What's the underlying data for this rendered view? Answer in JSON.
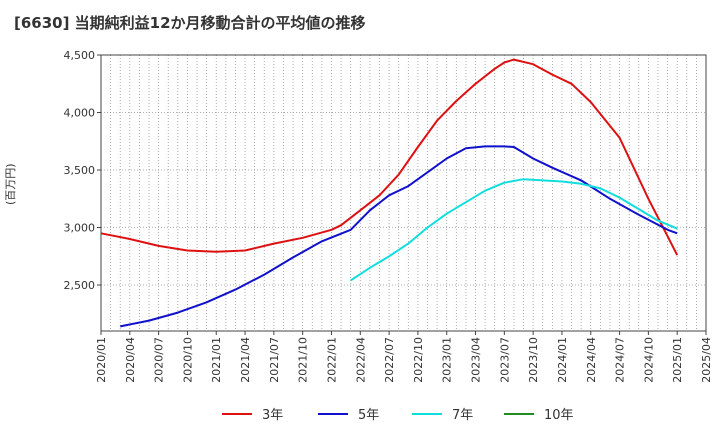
{
  "title": "[6630]  当期純利益12か月移動合計の平均値の推移",
  "chart_data": {
    "type": "line",
    "title": "[6630]  当期純利益12か月移動合計の平均値の推移",
    "xlabel": "",
    "ylabel": "(百万円)",
    "ylim": [
      2100,
      4500
    ],
    "yticks": [
      2500,
      3000,
      3500,
      4000,
      4500
    ],
    "ytick_labels": [
      "2,500",
      "3,000",
      "3,500",
      "4,000",
      "4,500"
    ],
    "x_range": [
      "2020-01",
      "2025-04"
    ],
    "xticks": [
      "2020/01",
      "2020/04",
      "2020/07",
      "2020/10",
      "2021/01",
      "2021/04",
      "2021/07",
      "2021/10",
      "2022/01",
      "2022/04",
      "2022/07",
      "2022/10",
      "2023/01",
      "2023/04",
      "2023/07",
      "2023/10",
      "2024/01",
      "2024/04",
      "2024/07",
      "2024/10",
      "2025/01",
      "2025/04"
    ],
    "grid": true,
    "legend_position": "bottom",
    "series": [
      {
        "name": "3年",
        "color": "#dd1111",
        "x": [
          "2020-01",
          "2020-04",
          "2020-07",
          "2020-10",
          "2021-01",
          "2021-04",
          "2021-07",
          "2021-10",
          "2022-01",
          "2022-02",
          "2022-04",
          "2022-06",
          "2022-08",
          "2022-10",
          "2022-12",
          "2023-02",
          "2023-04",
          "2023-06",
          "2023-07",
          "2023-08",
          "2023-10",
          "2023-12",
          "2024-02",
          "2024-04",
          "2024-07",
          "2024-10",
          "2025-01"
        ],
        "values": [
          2950,
          2900,
          2840,
          2800,
          2790,
          2800,
          2860,
          2910,
          2980,
          3020,
          3150,
          3280,
          3460,
          3700,
          3930,
          4100,
          4250,
          4380,
          4435,
          4460,
          4420,
          4330,
          4250,
          4090,
          3780,
          3250,
          2760
        ]
      },
      {
        "name": "5年",
        "color": "#1111cc",
        "x": [
          "2020-03",
          "2020-06",
          "2020-09",
          "2020-12",
          "2021-03",
          "2021-06",
          "2021-09",
          "2021-12",
          "2022-03",
          "2022-05",
          "2022-07",
          "2022-09",
          "2022-11",
          "2023-01",
          "2023-03",
          "2023-05",
          "2023-07",
          "2023-08",
          "2023-10",
          "2023-12",
          "2024-03",
          "2024-06",
          "2024-09",
          "2024-12",
          "2025-01"
        ],
        "values": [
          2140,
          2190,
          2260,
          2350,
          2460,
          2590,
          2740,
          2880,
          2980,
          3150,
          3280,
          3360,
          3480,
          3600,
          3690,
          3705,
          3705,
          3700,
          3600,
          3520,
          3410,
          3250,
          3110,
          2980,
          2950
        ]
      },
      {
        "name": "7年",
        "color": "#11dddd",
        "x": [
          "2022-03",
          "2022-05",
          "2022-07",
          "2022-09",
          "2022-11",
          "2023-01",
          "2023-03",
          "2023-05",
          "2023-07",
          "2023-09",
          "2023-11",
          "2024-01",
          "2024-03",
          "2024-05",
          "2024-07",
          "2024-09",
          "2024-11",
          "2025-01"
        ],
        "values": [
          2540,
          2650,
          2750,
          2860,
          3000,
          3120,
          3220,
          3320,
          3390,
          3420,
          3410,
          3400,
          3380,
          3340,
          3260,
          3160,
          3060,
          2990
        ]
      },
      {
        "name": "10年",
        "color": "#228b22",
        "x": [],
        "values": []
      }
    ]
  }
}
